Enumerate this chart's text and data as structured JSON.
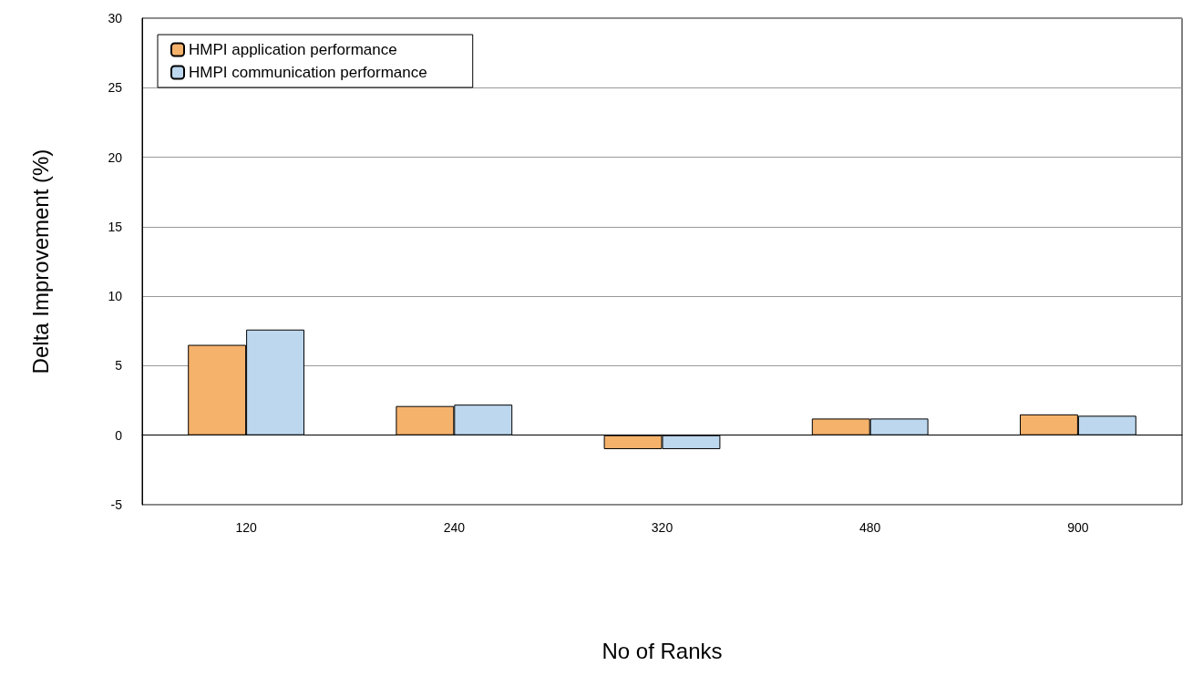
{
  "chart_data": {
    "type": "bar",
    "xlabel": "No of Ranks",
    "ylabel": "Delta Improvement (%)",
    "categories": [
      "120",
      "240",
      "320",
      "480",
      "900"
    ],
    "series": [
      {
        "name": "HMPI application performance",
        "color": "#f5b26b",
        "values": [
          6.5,
          2.1,
          -1,
          1.2,
          1.5
        ]
      },
      {
        "name": "HMPI communication performance",
        "color": "#bdd7ee",
        "values": [
          7.6,
          2.2,
          -1,
          1.2,
          1.4
        ]
      }
    ],
    "ylim": [
      -5,
      30
    ],
    "yticks": [
      -5,
      0,
      5,
      10,
      15,
      20,
      25,
      30
    ],
    "grid": "y",
    "legend": "top left"
  }
}
